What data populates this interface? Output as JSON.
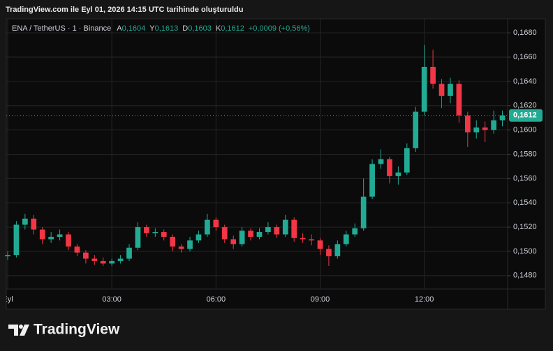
{
  "header": "TradingView.com ile Eyl 01, 2026 14:15 UTC tarihinde oluşturuldu",
  "legend": {
    "symbol": "ENA / TetherUS · 1 · Binance",
    "open_label": "A",
    "open": "0,1604",
    "high_label": "Y",
    "high": "0,1613",
    "low_label": "D",
    "low": "0,1603",
    "close_label": "K",
    "close": "0,1612",
    "change": "+0,0009 (+0,56%)"
  },
  "footer": "TradingView",
  "chart_data": {
    "type": "candlestick",
    "up_color": "#22ab94",
    "down_color": "#f23645",
    "grid": true,
    "x": [
      0,
      0.25,
      0.5,
      0.75,
      1,
      1.25,
      1.5,
      1.75,
      2,
      2.25,
      2.5,
      2.75,
      3,
      3.25,
      3.5,
      3.75,
      4,
      4.25,
      4.5,
      4.75,
      5,
      5.25,
      5.5,
      5.75,
      6,
      6.25,
      6.5,
      6.75,
      7,
      7.25,
      7.5,
      7.75,
      8,
      8.25,
      8.5,
      8.75,
      9,
      9.25,
      9.5,
      9.75,
      10,
      10.25,
      10.5,
      10.75,
      11,
      11.25,
      11.5,
      11.75,
      12,
      12.25,
      12.5,
      12.75,
      13,
      13.25,
      13.5,
      13.75,
      14,
      14.25
    ],
    "open": [
      0.1496,
      0.1497,
      0.1522,
      0.1527,
      0.1518,
      0.151,
      0.1512,
      0.1514,
      0.1504,
      0.1499,
      0.1494,
      0.1492,
      0.149,
      0.1492,
      0.1494,
      0.1503,
      0.152,
      0.1515,
      0.1516,
      0.1512,
      0.1504,
      0.1502,
      0.1509,
      0.1514,
      0.1526,
      0.152,
      0.151,
      0.1506,
      0.1517,
      0.1512,
      0.1516,
      0.152,
      0.1514,
      0.1526,
      0.1511,
      0.151,
      0.1509,
      0.1502,
      0.1496,
      0.1506,
      0.1514,
      0.1519,
      0.1545,
      0.1572,
      0.1576,
      0.1562,
      0.1565,
      0.1585,
      0.1615,
      0.1652,
      0.1638,
      0.1628,
      0.1638,
      0.1612,
      0.1598,
      0.1602,
      0.16,
      0.1608
    ],
    "high": [
      0.15,
      0.1525,
      0.1531,
      0.153,
      0.152,
      0.1516,
      0.1518,
      0.1516,
      0.1506,
      0.1501,
      0.1497,
      0.1495,
      0.1494,
      0.1497,
      0.1506,
      0.1524,
      0.1522,
      0.1519,
      0.1518,
      0.1514,
      0.1506,
      0.1512,
      0.1517,
      0.1531,
      0.1528,
      0.1522,
      0.1513,
      0.152,
      0.1519,
      0.1519,
      0.1524,
      0.1522,
      0.153,
      0.1528,
      0.1515,
      0.1514,
      0.1511,
      0.1505,
      0.1509,
      0.1517,
      0.1523,
      0.156,
      0.1576,
      0.1584,
      0.1578,
      0.157,
      0.1589,
      0.1619,
      0.167,
      0.1666,
      0.1642,
      0.1643,
      0.1641,
      0.1615,
      0.1608,
      0.1607,
      0.1616,
      0.1616
    ],
    "low": [
      0.1493,
      0.1495,
      0.1518,
      0.1514,
      0.1506,
      0.1507,
      0.1509,
      0.1501,
      0.1496,
      0.149,
      0.1489,
      0.1488,
      0.1488,
      0.149,
      0.1492,
      0.1501,
      0.1512,
      0.1512,
      0.1509,
      0.15,
      0.1499,
      0.15,
      0.1507,
      0.1512,
      0.1517,
      0.1507,
      0.1502,
      0.1504,
      0.1509,
      0.151,
      0.1514,
      0.1511,
      0.1512,
      0.1508,
      0.1507,
      0.1505,
      0.1497,
      0.1488,
      0.1494,
      0.1504,
      0.1512,
      0.1517,
      0.1543,
      0.1568,
      0.1556,
      0.1555,
      0.1563,
      0.1582,
      0.1612,
      0.1634,
      0.1618,
      0.1622,
      0.1606,
      0.1586,
      0.1593,
      0.159,
      0.1597,
      0.1603
    ],
    "close": [
      0.1497,
      0.1522,
      0.1527,
      0.1518,
      0.151,
      0.1512,
      0.1514,
      0.1504,
      0.1499,
      0.1494,
      0.1492,
      0.149,
      0.1492,
      0.1494,
      0.1503,
      0.152,
      0.1515,
      0.1516,
      0.1512,
      0.1504,
      0.1502,
      0.1509,
      0.1514,
      0.1526,
      0.152,
      0.151,
      0.1506,
      0.1517,
      0.1512,
      0.1516,
      0.152,
      0.1514,
      0.1526,
      0.1511,
      0.151,
      0.1509,
      0.1502,
      0.1496,
      0.1506,
      0.1514,
      0.1519,
      0.1545,
      0.1572,
      0.1576,
      0.1562,
      0.1565,
      0.1585,
      0.1615,
      0.1652,
      0.1638,
      0.1628,
      0.1638,
      0.1612,
      0.1598,
      0.1602,
      0.16,
      0.1608,
      0.1612
    ],
    "xlim": [
      0,
      14.4
    ],
    "xticks": [
      {
        "value": 0,
        "label": "Eyl"
      },
      {
        "value": 3,
        "label": "03:00"
      },
      {
        "value": 6,
        "label": "06:00"
      },
      {
        "value": 9,
        "label": "09:00"
      },
      {
        "value": 12,
        "label": "12:00"
      }
    ],
    "ylim": [
      0.1469,
      0.1691
    ],
    "yticks": [
      {
        "value": 0.148,
        "label": "0,1480"
      },
      {
        "value": 0.15,
        "label": "0,1500"
      },
      {
        "value": 0.152,
        "label": "0,1520"
      },
      {
        "value": 0.154,
        "label": "0,1540"
      },
      {
        "value": 0.156,
        "label": "0,1560"
      },
      {
        "value": 0.158,
        "label": "0,1580"
      },
      {
        "value": 0.16,
        "label": "0,1600"
      },
      {
        "value": 0.162,
        "label": "0,1620"
      },
      {
        "value": 0.164,
        "label": "0,1640"
      },
      {
        "value": 0.166,
        "label": "0,1660"
      },
      {
        "value": 0.168,
        "label": "0,1680"
      }
    ],
    "last_price": {
      "value": 0.1612,
      "label": "0,1612"
    }
  }
}
